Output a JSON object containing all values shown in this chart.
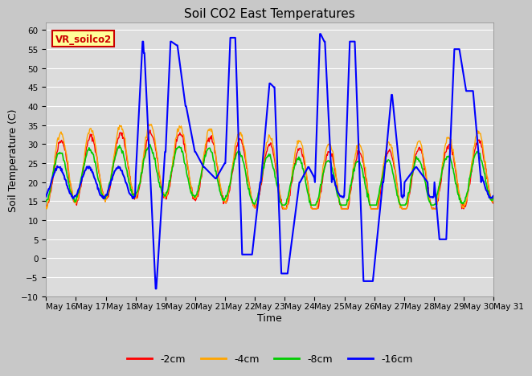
{
  "title": "Soil CO2 East Temperatures",
  "xlabel": "Time",
  "ylabel": "Soil Temperature (C)",
  "ylim": [
    -10,
    62
  ],
  "bg_color": "#cccccc",
  "plot_bg": "#e0e0e0",
  "grid_color": "white",
  "legend_labels": [
    "-2cm",
    "-4cm",
    "-8cm",
    "-16cm"
  ],
  "legend_colors": [
    "#ff0000",
    "#ffa500",
    "#00cc00",
    "#0000ff"
  ],
  "annotation_text": "VR_soilco2",
  "annotation_bg": "#ffff99",
  "annotation_border": "#cc0000",
  "xtick_labels": [
    "May 16",
    "May 17",
    "May 18",
    "May 19",
    "May 20",
    "May 21",
    "May 22",
    "May 23",
    "May 24",
    "May 25",
    "May 26",
    "May 27",
    "May 28",
    "May 29",
    "May 30",
    "May 31"
  ],
  "title_fontsize": 11,
  "axis_label_fontsize": 9,
  "tick_fontsize": 7.5
}
